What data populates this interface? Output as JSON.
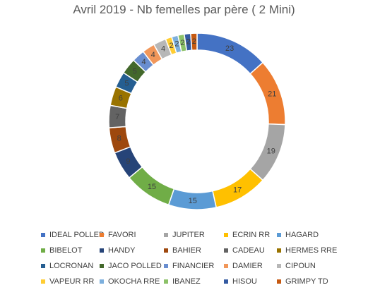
{
  "chart_data": {
    "type": "pie",
    "subtype": "doughnut",
    "title": "Avril 2019 - Nb femelles par père  ( 2 Mini)",
    "legend_position": "bottom",
    "series": [
      {
        "name": "IDEAL POLLED",
        "value": 23,
        "color": "#4472C4"
      },
      {
        "name": "FAVORI",
        "value": 21,
        "color": "#ED7D31"
      },
      {
        "name": "JUPITER",
        "value": 19,
        "color": "#A5A5A5"
      },
      {
        "name": "ECRIN RR",
        "value": 17,
        "color": "#FFC000"
      },
      {
        "name": "HAGARD",
        "value": 15,
        "color": "#5B9BD5"
      },
      {
        "name": "BIBELOT",
        "value": 15,
        "color": "#70AD47"
      },
      {
        "name": "HANDY",
        "value": 9,
        "color": "#264478"
      },
      {
        "name": "BAHIER",
        "value": 8,
        "color": "#9E480E"
      },
      {
        "name": "CADEAU",
        "value": 7,
        "color": "#636363"
      },
      {
        "name": "HERMES RRE",
        "value": 6,
        "color": "#997300"
      },
      {
        "name": "LOCRONAN",
        "value": 5,
        "color": "#255E91"
      },
      {
        "name": "JACO POLLED",
        "value": 5,
        "color": "#43682B"
      },
      {
        "name": "FINANCIER",
        "value": 4,
        "color": "#698ED0"
      },
      {
        "name": "DAMIER",
        "value": 4,
        "color": "#F1975A"
      },
      {
        "name": "CIPOUN",
        "value": 4,
        "color": "#B7B7B7"
      },
      {
        "name": "VAPEUR RR",
        "value": 2,
        "color": "#FFCD33"
      },
      {
        "name": "OKOCHA RRE",
        "value": 2,
        "color": "#7CAFDD"
      },
      {
        "name": "IBANEZ",
        "value": 2,
        "color": "#8CC168"
      },
      {
        "name": "HISOU",
        "value": 2,
        "color": "#335AA1"
      },
      {
        "name": "GRIMPY TD",
        "value": 2,
        "color": "#C65911"
      }
    ]
  }
}
